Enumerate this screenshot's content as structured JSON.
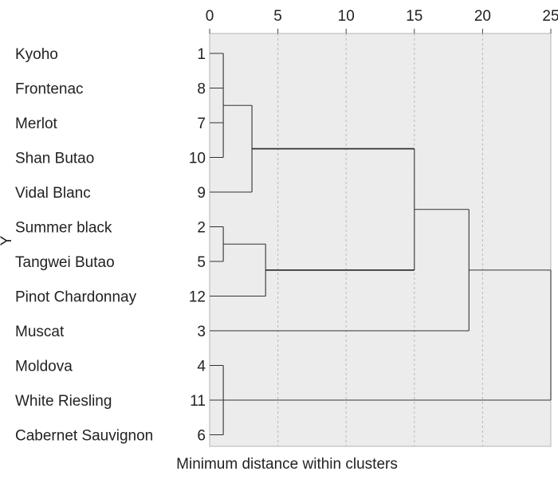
{
  "chart_data": {
    "type": "dendrogram",
    "xlabel": "Minimum distance within clusters",
    "ylabel": "Y",
    "xlim": [
      0,
      25
    ],
    "xticks": [
      "0",
      "5",
      "10",
      "15",
      "20",
      "25"
    ],
    "grid": true,
    "leaves": [
      {
        "name": "Kyoho",
        "id": "1"
      },
      {
        "name": "Frontenac",
        "id": "8"
      },
      {
        "name": "Merlot",
        "id": "7"
      },
      {
        "name": "Shan Butao",
        "id": "10"
      },
      {
        "name": "Vidal Blanc",
        "id": "9"
      },
      {
        "name": "Summer black",
        "id": "2"
      },
      {
        "name": "Tangwei Butao",
        "id": "5"
      },
      {
        "name": "Pinot Chardonnay",
        "id": "12"
      },
      {
        "name": "Muscat",
        "id": "3"
      },
      {
        "name": "Moldova",
        "id": "4"
      },
      {
        "name": "White Riesling",
        "id": "11"
      },
      {
        "name": "Cabernet Sauvignon",
        "id": "6"
      }
    ],
    "merges": [
      {
        "children": [
          "L0",
          "L1",
          "L2",
          "L3"
        ],
        "height": 1.0
      },
      {
        "children": [
          "M0",
          "L4"
        ],
        "height": 3.1
      },
      {
        "children": [
          "L5",
          "L6"
        ],
        "height": 1.0
      },
      {
        "children": [
          "M2",
          "L7"
        ],
        "height": 4.1
      },
      {
        "children": [
          "M1",
          "M3"
        ],
        "height": 15.0
      },
      {
        "children": [
          "M4",
          "L8"
        ],
        "height": 19.0
      },
      {
        "children": [
          "L9",
          "L10",
          "L11"
        ],
        "height": 1.0
      },
      {
        "children": [
          "M5",
          "M6"
        ],
        "height": 25.0
      }
    ]
  }
}
